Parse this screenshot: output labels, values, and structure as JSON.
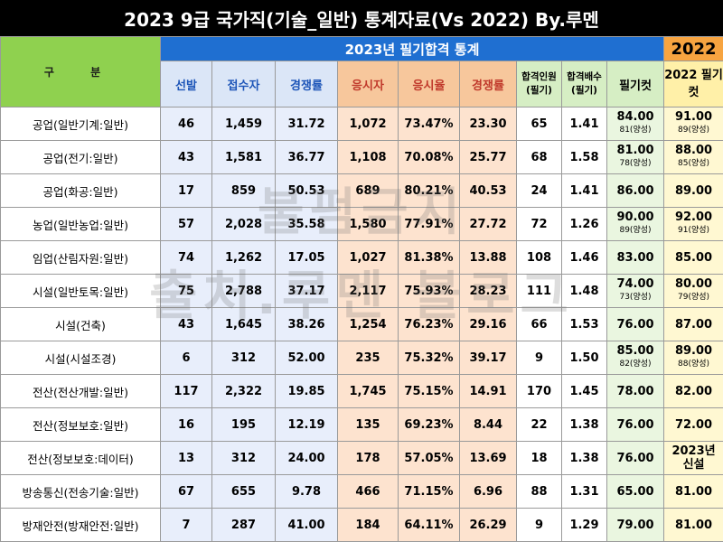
{
  "title": "2023 9급 국가직(기술_일반) 통계자료(Vs 2022) By.루멘",
  "header": {
    "gubun": "구 분",
    "group_2023": "2023년 필기합격 통계",
    "group_2022": "2022",
    "cols": {
      "seonbal": "선발",
      "jeopsu": "접수자",
      "gyeongjaeng1": "경쟁률",
      "eungsi": "응시자",
      "eungsiyul": "응시율",
      "gyeongjaeng2": "경쟁률",
      "hapgyeok_inwon": "합격인원 (필기)",
      "hapgyeok_baesu": "합격배수 (필기)",
      "cut": "필기컷",
      "cut2022": "2022 필기컷"
    }
  },
  "rows": [
    {
      "name": "공업(일반기계:일반)",
      "seonbal": "46",
      "jeopsu": "1,459",
      "comp1": "31.72",
      "eungsi": "1,072",
      "rate": "73.47%",
      "comp2": "23.30",
      "pass": "65",
      "mult": "1.41",
      "cut": "84.00",
      "cut_sub": "81(양성)",
      "cut22": "91.00",
      "cut22_sub": "89(양성)"
    },
    {
      "name": "공업(전기:일반)",
      "seonbal": "43",
      "jeopsu": "1,581",
      "comp1": "36.77",
      "eungsi": "1,108",
      "rate": "70.08%",
      "comp2": "25.77",
      "pass": "68",
      "mult": "1.58",
      "cut": "81.00",
      "cut_sub": "78(양성)",
      "cut22": "88.00",
      "cut22_sub": "85(양성)"
    },
    {
      "name": "공업(화공:일반)",
      "seonbal": "17",
      "jeopsu": "859",
      "comp1": "50.53",
      "eungsi": "689",
      "rate": "80.21%",
      "comp2": "40.53",
      "pass": "24",
      "mult": "1.41",
      "cut": "86.00",
      "cut_sub": "",
      "cut22": "89.00",
      "cut22_sub": ""
    },
    {
      "name": "농업(일반농업:일반)",
      "seonbal": "57",
      "jeopsu": "2,028",
      "comp1": "35.58",
      "eungsi": "1,580",
      "rate": "77.91%",
      "comp2": "27.72",
      "pass": "72",
      "mult": "1.26",
      "cut": "90.00",
      "cut_sub": "89(양성)",
      "cut22": "92.00",
      "cut22_sub": "91(양성)"
    },
    {
      "name": "임업(산림자원:일반)",
      "seonbal": "74",
      "jeopsu": "1,262",
      "comp1": "17.05",
      "eungsi": "1,027",
      "rate": "81.38%",
      "comp2": "13.88",
      "pass": "108",
      "mult": "1.46",
      "cut": "83.00",
      "cut_sub": "",
      "cut22": "85.00",
      "cut22_sub": ""
    },
    {
      "name": "시설(일반토목:일반)",
      "seonbal": "75",
      "jeopsu": "2,788",
      "comp1": "37.17",
      "eungsi": "2,117",
      "rate": "75.93%",
      "comp2": "28.23",
      "pass": "111",
      "mult": "1.48",
      "cut": "74.00",
      "cut_sub": "73(양성)",
      "cut22": "80.00",
      "cut22_sub": "79(양성)"
    },
    {
      "name": "시설(건축)",
      "seonbal": "43",
      "jeopsu": "1,645",
      "comp1": "38.26",
      "eungsi": "1,254",
      "rate": "76.23%",
      "comp2": "29.16",
      "pass": "66",
      "mult": "1.53",
      "cut": "76.00",
      "cut_sub": "",
      "cut22": "87.00",
      "cut22_sub": ""
    },
    {
      "name": "시설(시설조경)",
      "seonbal": "6",
      "jeopsu": "312",
      "comp1": "52.00",
      "eungsi": "235",
      "rate": "75.32%",
      "comp2": "39.17",
      "pass": "9",
      "mult": "1.50",
      "cut": "85.00",
      "cut_sub": "82(양성)",
      "cut22": "89.00",
      "cut22_sub": "88(양성)"
    },
    {
      "name": "전산(전산개발:일반)",
      "seonbal": "117",
      "jeopsu": "2,322",
      "comp1": "19.85",
      "eungsi": "1,745",
      "rate": "75.15%",
      "comp2": "14.91",
      "pass": "170",
      "mult": "1.45",
      "cut": "78.00",
      "cut_sub": "",
      "cut22": "82.00",
      "cut22_sub": ""
    },
    {
      "name": "전산(정보보호:일반)",
      "seonbal": "16",
      "jeopsu": "195",
      "comp1": "12.19",
      "eungsi": "135",
      "rate": "69.23%",
      "comp2": "8.44",
      "pass": "22",
      "mult": "1.38",
      "cut": "76.00",
      "cut_sub": "",
      "cut22": "72.00",
      "cut22_sub": ""
    },
    {
      "name": "전산(정보보호:데이터)",
      "seonbal": "13",
      "jeopsu": "312",
      "comp1": "24.00",
      "eungsi": "178",
      "rate": "57.05%",
      "comp2": "13.69",
      "pass": "18",
      "mult": "1.38",
      "cut": "76.00",
      "cut_sub": "",
      "cut22": "2023년",
      "cut22_sub": "신설"
    },
    {
      "name": "방송통신(전송기술:일반)",
      "seonbal": "67",
      "jeopsu": "655",
      "comp1": "9.78",
      "eungsi": "466",
      "rate": "71.15%",
      "comp2": "6.96",
      "pass": "88",
      "mult": "1.31",
      "cut": "65.00",
      "cut_sub": "",
      "cut22": "81.00",
      "cut22_sub": ""
    },
    {
      "name": "방재안전(방재안전:일반)",
      "seonbal": "7",
      "jeopsu": "287",
      "comp1": "41.00",
      "eungsi": "184",
      "rate": "64.11%",
      "comp2": "26.29",
      "pass": "9",
      "mult": "1.29",
      "cut": "79.00",
      "cut_sub": "",
      "cut22": "81.00",
      "cut22_sub": ""
    }
  ],
  "watermark": {
    "line1": "불펌금지",
    "line2": "출처.루멘 블로그"
  },
  "colors": {
    "title_bg": "#000000",
    "gubun_bg": "#8fd14f",
    "group2023_bg": "#1f6fd1",
    "group2022_bg": "#f7a440",
    "blue": "#e8eefb",
    "orange": "#fde3cf",
    "green": "#eaf6e0",
    "yellow": "#fff8d2"
  }
}
